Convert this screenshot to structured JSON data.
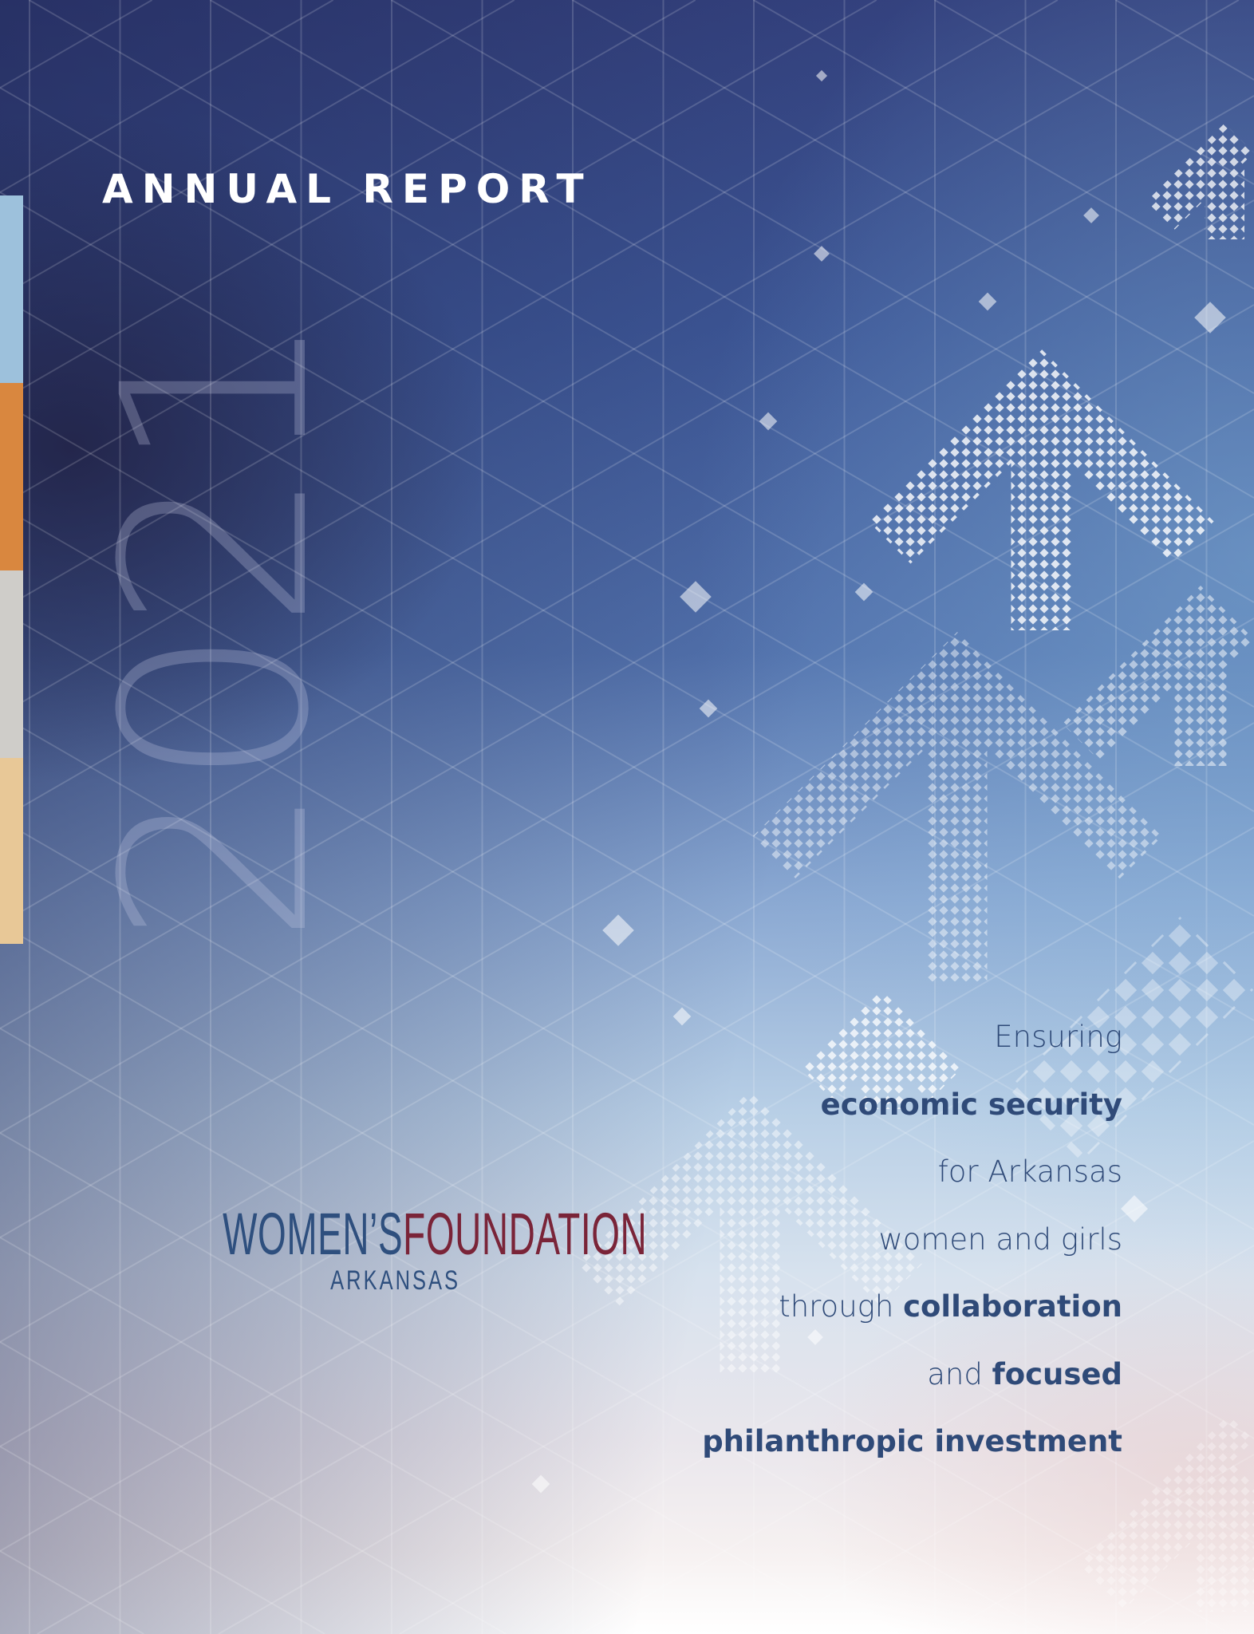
{
  "cover": {
    "title": "ANNUAL REPORT",
    "year": "2021",
    "sidebar_colors": [
      "#9dc1dc",
      "#d9873f",
      "#cfcdc9",
      "#e8c897"
    ],
    "text_color": "#2f4a78"
  },
  "logo": {
    "word1": "WOMEN’S",
    "word2": "FOUNDATION",
    "sub": "ARKANSAS",
    "color_primary": "#2e4f7e",
    "color_secondary": "#7a2438"
  },
  "tagline": {
    "l1": "Ensuring",
    "l2": "economic security",
    "l3": "for Arkansas",
    "l4": "women and girls",
    "l5a": "through ",
    "l5b": "collaboration",
    "l6a": "and ",
    "l6b": "focused",
    "l7": "philanthropic investment"
  }
}
